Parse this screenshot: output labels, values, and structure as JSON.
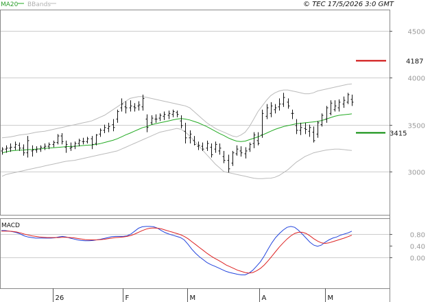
{
  "header": {
    "legend_ma": "MA20",
    "legend_bb": "BBands",
    "copyright": "© TEC 17/5/2026 3:0 GMT"
  },
  "colors": {
    "price_bars": "#111111",
    "ma20": "#22aa22",
    "bbands": "#bbbbbb",
    "macd_line": "#2244dd",
    "signal_line": "#dd2222",
    "resistance": "#cc0000",
    "support": "#008800",
    "grid": "#cccccc",
    "axis": "#555555"
  },
  "chart_data": [
    {
      "type": "ohlc",
      "title": "",
      "yticks": [
        "4500",
        "4000",
        "3500",
        "3000"
      ],
      "ylim": [
        2800,
        4750
      ],
      "xticks": [
        "26",
        "F",
        "M",
        "A",
        "M"
      ],
      "levels": [
        {
          "value": 4187,
          "label": "4187",
          "kind": "resistance"
        },
        {
          "value": 3415,
          "label": "3415",
          "kind": "support"
        }
      ],
      "ohlc": [
        [
          3220,
          3260,
          3180,
          3240
        ],
        [
          3240,
          3280,
          3200,
          3250
        ],
        [
          3250,
          3300,
          3210,
          3260
        ],
        [
          3260,
          3320,
          3230,
          3290
        ],
        [
          3280,
          3310,
          3220,
          3250
        ],
        [
          3250,
          3290,
          3170,
          3200
        ],
        [
          3200,
          3380,
          3150,
          3330
        ],
        [
          3220,
          3280,
          3160,
          3230
        ],
        [
          3230,
          3270,
          3200,
          3240
        ],
        [
          3240,
          3280,
          3210,
          3260
        ],
        [
          3260,
          3300,
          3230,
          3270
        ],
        [
          3270,
          3310,
          3240,
          3290
        ],
        [
          3290,
          3330,
          3260,
          3310
        ],
        [
          3310,
          3400,
          3290,
          3380
        ],
        [
          3380,
          3410,
          3290,
          3320
        ],
        [
          3260,
          3330,
          3200,
          3290
        ],
        [
          3250,
          3310,
          3220,
          3260
        ],
        [
          3270,
          3320,
          3240,
          3300
        ],
        [
          3300,
          3350,
          3270,
          3330
        ],
        [
          3320,
          3360,
          3290,
          3320
        ],
        [
          3320,
          3370,
          3300,
          3350
        ],
        [
          3350,
          3380,
          3240,
          3290
        ],
        [
          3300,
          3400,
          3280,
          3390
        ],
        [
          3400,
          3460,
          3370,
          3440
        ],
        [
          3440,
          3500,
          3410,
          3470
        ],
        [
          3460,
          3520,
          3420,
          3480
        ],
        [
          3500,
          3560,
          3430,
          3470
        ],
        [
          3560,
          3660,
          3520,
          3640
        ],
        [
          3680,
          3780,
          3640,
          3720
        ],
        [
          3690,
          3750,
          3620,
          3680
        ],
        [
          3680,
          3760,
          3640,
          3700
        ],
        [
          3690,
          3730,
          3640,
          3680
        ],
        [
          3700,
          3750,
          3650,
          3710
        ],
        [
          3690,
          3820,
          3650,
          3780
        ],
        [
          3560,
          3610,
          3420,
          3470
        ],
        [
          3520,
          3600,
          3500,
          3570
        ],
        [
          3560,
          3610,
          3520,
          3560
        ],
        [
          3570,
          3620,
          3540,
          3600
        ],
        [
          3590,
          3640,
          3550,
          3610
        ],
        [
          3600,
          3650,
          3560,
          3620
        ],
        [
          3610,
          3660,
          3580,
          3640
        ],
        [
          3630,
          3650,
          3580,
          3610
        ],
        [
          3540,
          3600,
          3460,
          3490
        ],
        [
          3430,
          3520,
          3300,
          3360
        ],
        [
          3360,
          3440,
          3300,
          3400
        ],
        [
          3330,
          3380,
          3280,
          3290
        ],
        [
          3270,
          3320,
          3230,
          3280
        ],
        [
          3270,
          3310,
          3220,
          3240
        ],
        [
          3250,
          3330,
          3220,
          3300
        ],
        [
          3260,
          3300,
          3150,
          3180
        ],
        [
          3240,
          3320,
          3200,
          3290
        ],
        [
          3220,
          3300,
          3180,
          3250
        ],
        [
          3160,
          3220,
          3090,
          3120
        ],
        [
          3120,
          3180,
          2990,
          3030
        ],
        [
          3090,
          3220,
          3060,
          3200
        ],
        [
          3190,
          3280,
          3170,
          3240
        ],
        [
          3220,
          3270,
          3160,
          3200
        ],
        [
          3190,
          3260,
          3140,
          3220
        ],
        [
          3240,
          3310,
          3210,
          3290
        ],
        [
          3300,
          3420,
          3250,
          3390
        ],
        [
          3330,
          3420,
          3280,
          3300
        ],
        [
          3390,
          3660,
          3360,
          3620
        ],
        [
          3590,
          3720,
          3560,
          3680
        ],
        [
          3620,
          3740,
          3580,
          3700
        ],
        [
          3660,
          3720,
          3620,
          3680
        ],
        [
          3690,
          3780,
          3650,
          3720
        ],
        [
          3720,
          3840,
          3690,
          3790
        ],
        [
          3740,
          3780,
          3670,
          3700
        ],
        [
          3620,
          3660,
          3560,
          3620
        ],
        [
          3490,
          3560,
          3400,
          3440
        ],
        [
          3440,
          3520,
          3390,
          3470
        ],
        [
          3460,
          3520,
          3400,
          3450
        ],
        [
          3430,
          3500,
          3370,
          3470
        ],
        [
          3420,
          3480,
          3310,
          3330
        ],
        [
          3400,
          3540,
          3360,
          3520
        ],
        [
          3500,
          3620,
          3480,
          3600
        ],
        [
          3560,
          3700,
          3520,
          3680
        ],
        [
          3620,
          3760,
          3600,
          3730
        ],
        [
          3660,
          3760,
          3640,
          3700
        ],
        [
          3680,
          3770,
          3640,
          3740
        ],
        [
          3720,
          3800,
          3680,
          3760
        ],
        [
          3740,
          3840,
          3720,
          3820
        ],
        [
          3770,
          3820,
          3700,
          3740
        ]
      ],
      "ma20": [
        3200,
        3210,
        3220,
        3225,
        3228,
        3230,
        3234,
        3236,
        3240,
        3244,
        3247,
        3250,
        3254,
        3258,
        3262,
        3266,
        3268,
        3270,
        3274,
        3278,
        3282,
        3284,
        3290,
        3298,
        3310,
        3322,
        3334,
        3350,
        3370,
        3392,
        3410,
        3430,
        3450,
        3470,
        3480,
        3500,
        3510,
        3520,
        3530,
        3540,
        3550,
        3560,
        3565,
        3560,
        3550,
        3535,
        3520,
        3500,
        3480,
        3455,
        3430,
        3405,
        3385,
        3360,
        3340,
        3325,
        3320,
        3325,
        3340,
        3355,
        3370,
        3390,
        3410,
        3430,
        3450,
        3465,
        3480,
        3490,
        3500,
        3510,
        3515,
        3520,
        3525,
        3530,
        3535,
        3545,
        3560,
        3575,
        3590,
        3600,
        3605,
        3610,
        3615
      ],
      "bb_upper": [
        3360,
        3365,
        3370,
        3380,
        3390,
        3395,
        3400,
        3410,
        3420,
        3425,
        3430,
        3440,
        3450,
        3460,
        3470,
        3480,
        3490,
        3500,
        3510,
        3520,
        3530,
        3540,
        3560,
        3580,
        3600,
        3630,
        3660,
        3690,
        3720,
        3750,
        3780,
        3790,
        3800,
        3800,
        3790,
        3780,
        3770,
        3760,
        3750,
        3740,
        3730,
        3720,
        3710,
        3700,
        3680,
        3640,
        3600,
        3560,
        3520,
        3490,
        3460,
        3440,
        3420,
        3400,
        3380,
        3370,
        3390,
        3420,
        3480,
        3560,
        3640,
        3700,
        3760,
        3810,
        3840,
        3860,
        3870,
        3870,
        3860,
        3850,
        3840,
        3830,
        3830,
        3840,
        3860,
        3870,
        3880,
        3890,
        3900,
        3910,
        3920,
        3930,
        3935
      ],
      "bb_lower": [
        2950,
        2970,
        2980,
        2990,
        3000,
        3010,
        3020,
        3030,
        3040,
        3050,
        3060,
        3070,
        3080,
        3090,
        3100,
        3110,
        3115,
        3120,
        3130,
        3140,
        3150,
        3160,
        3170,
        3180,
        3190,
        3200,
        3210,
        3220,
        3240,
        3260,
        3280,
        3300,
        3320,
        3340,
        3360,
        3380,
        3400,
        3420,
        3430,
        3440,
        3450,
        3460,
        3450,
        3420,
        3380,
        3330,
        3280,
        3230,
        3180,
        3130,
        3080,
        3040,
        3000,
        2990,
        2980,
        2970,
        2960,
        2950,
        2940,
        2930,
        2925,
        2925,
        2928,
        2930,
        2940,
        2960,
        2990,
        3020,
        3060,
        3100,
        3130,
        3160,
        3180,
        3200,
        3210,
        3220,
        3230,
        3235,
        3240,
        3240,
        3235,
        3230,
        3225
      ]
    },
    {
      "type": "line",
      "title": "MACD",
      "yticks": [
        "0.80",
        "0.40",
        "0.00"
      ],
      "series": [
        {
          "name": "",
          "values": [
            0.92,
            0.92,
            0.9,
            0.88,
            0.85,
            0.8,
            0.74,
            0.7,
            0.68,
            0.66,
            0.66,
            0.66,
            0.66,
            0.66,
            0.67,
            0.7,
            0.72,
            0.7,
            0.66,
            0.63,
            0.6,
            0.58,
            0.57,
            0.57,
            0.58,
            0.6,
            0.62,
            0.65,
            0.68,
            0.71,
            0.72,
            0.72,
            0.72,
            0.74,
            0.8,
            0.9,
            1.0,
            1.05,
            1.06,
            1.06,
            1.05,
            1.0,
            0.92,
            0.85,
            0.8,
            0.76,
            0.72,
            0.68,
            0.6,
            0.45,
            0.28,
            0.14,
            0.02,
            -0.08,
            -0.18,
            -0.25,
            -0.3,
            -0.36,
            -0.42,
            -0.48,
            -0.52,
            -0.55,
            -0.58,
            -0.6,
            -0.6,
            -0.54,
            -0.44,
            -0.3,
            -0.15,
            0.05,
            0.28,
            0.5,
            0.68,
            0.82,
            0.94,
            1.03,
            1.06,
            1.03,
            0.93,
            0.8,
            0.66,
            0.52,
            0.42,
            0.38,
            0.42,
            0.52,
            0.6,
            0.66,
            0.7,
            0.76,
            0.8,
            0.84,
            0.9
          ]
        },
        {
          "name": "",
          "values": [
            0.9,
            0.9,
            0.9,
            0.89,
            0.87,
            0.84,
            0.8,
            0.77,
            0.74,
            0.72,
            0.7,
            0.69,
            0.68,
            0.68,
            0.68,
            0.68,
            0.69,
            0.69,
            0.68,
            0.67,
            0.65,
            0.63,
            0.61,
            0.6,
            0.6,
            0.6,
            0.61,
            0.62,
            0.64,
            0.66,
            0.68,
            0.69,
            0.7,
            0.72,
            0.75,
            0.8,
            0.86,
            0.92,
            0.97,
            1.0,
            1.01,
            1.0,
            0.98,
            0.94,
            0.9,
            0.86,
            0.82,
            0.78,
            0.72,
            0.64,
            0.54,
            0.44,
            0.34,
            0.24,
            0.14,
            0.05,
            -0.03,
            -0.1,
            -0.18,
            -0.26,
            -0.32,
            -0.38,
            -0.44,
            -0.48,
            -0.52,
            -0.54,
            -0.52,
            -0.46,
            -0.38,
            -0.26,
            -0.12,
            0.04,
            0.2,
            0.36,
            0.5,
            0.63,
            0.74,
            0.82,
            0.86,
            0.86,
            0.82,
            0.74,
            0.64,
            0.56,
            0.5,
            0.48,
            0.5,
            0.54,
            0.58,
            0.62,
            0.66,
            0.71,
            0.76
          ]
        }
      ]
    }
  ]
}
